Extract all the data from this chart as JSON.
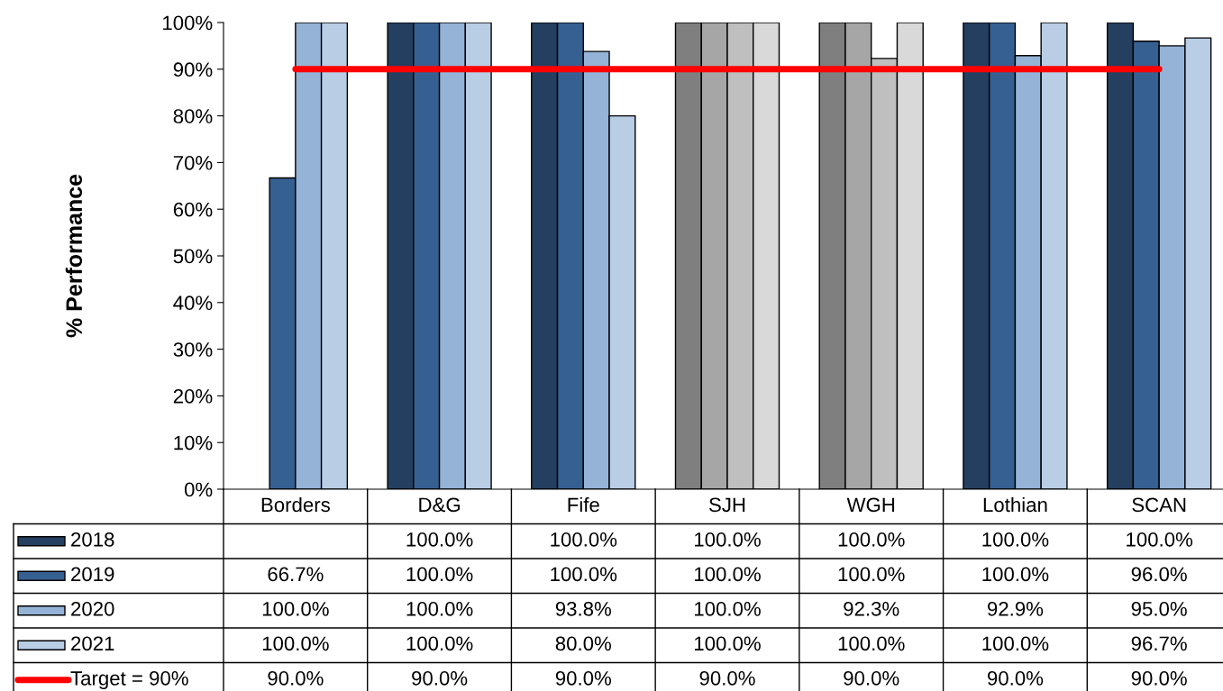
{
  "chart_data": {
    "type": "bar",
    "ylabel": "% Performance",
    "categories": [
      "Borders",
      "D&G",
      "Fife",
      "SJH",
      "WGH",
      "Lothian",
      "SCAN"
    ],
    "series": [
      {
        "name": "2018",
        "color": "#243f60",
        "colors": [
          "#243f60",
          "#243f60",
          "#243f60",
          "#7f7f7f",
          "#7f7f7f",
          "#243f60",
          "#243f60"
        ],
        "values": [
          null,
          100,
          100,
          100,
          100,
          100,
          100
        ],
        "value_labels": [
          null,
          "100.0%",
          "100.0%",
          "100.0%",
          "100.0%",
          "100.0%",
          "100.0%"
        ]
      },
      {
        "name": "2019",
        "color": "#376092",
        "colors": [
          "#376092",
          "#376092",
          "#376092",
          "#a6a6a6",
          "#a6a6a6",
          "#376092",
          "#376092"
        ],
        "values": [
          66.7,
          100,
          100,
          100,
          100,
          100,
          96.0
        ],
        "value_labels": [
          "66.7%",
          "100.0%",
          "100.0%",
          "100.0%",
          "100.0%",
          "100.0%",
          "96.0%"
        ]
      },
      {
        "name": "2020",
        "color": "#95b3d7",
        "colors": [
          "#95b3d7",
          "#95b3d7",
          "#95b3d7",
          "#bfbfbf",
          "#bfbfbf",
          "#95b3d7",
          "#95b3d7"
        ],
        "values": [
          100,
          100,
          93.8,
          100,
          92.3,
          92.9,
          95.0
        ],
        "value_labels": [
          "100.0%",
          "100.0%",
          "93.8%",
          "100.0%",
          "92.3%",
          "92.9%",
          "95.0%"
        ]
      },
      {
        "name": "2021",
        "color": "#b9cde5",
        "colors": [
          "#b9cde5",
          "#b9cde5",
          "#b9cde5",
          "#d9d9d9",
          "#d9d9d9",
          "#b9cde5",
          "#b9cde5"
        ],
        "values": [
          100,
          100,
          80.0,
          100,
          100,
          100,
          96.7
        ],
        "value_labels": [
          "100.0%",
          "100.0%",
          "80.0%",
          "100.0%",
          "100.0%",
          "100.0%",
          "96.7%"
        ]
      },
      {
        "name": "Target = 90%",
        "type": "line",
        "color": "#ff0000",
        "values": [
          90,
          90,
          90,
          90,
          90,
          90,
          90
        ],
        "value_labels": [
          "90.0%",
          "90.0%",
          "90.0%",
          "90.0%",
          "90.0%",
          "90.0%",
          "90.0%"
        ]
      }
    ],
    "ylim": [
      0,
      100
    ],
    "yticks": [
      {
        "value": 0,
        "label": "0%"
      },
      {
        "value": 10,
        "label": "10%"
      },
      {
        "value": 20,
        "label": "20%"
      },
      {
        "value": 30,
        "label": "30%"
      },
      {
        "value": 40,
        "label": "40%"
      },
      {
        "value": 50,
        "label": "50%"
      },
      {
        "value": 60,
        "label": "60%"
      },
      {
        "value": 70,
        "label": "70%"
      },
      {
        "value": 80,
        "label": "80%"
      },
      {
        "value": 90,
        "label": "90%"
      },
      {
        "value": 100,
        "label": "100%"
      }
    ],
    "grid": false,
    "legend": "bottom"
  }
}
